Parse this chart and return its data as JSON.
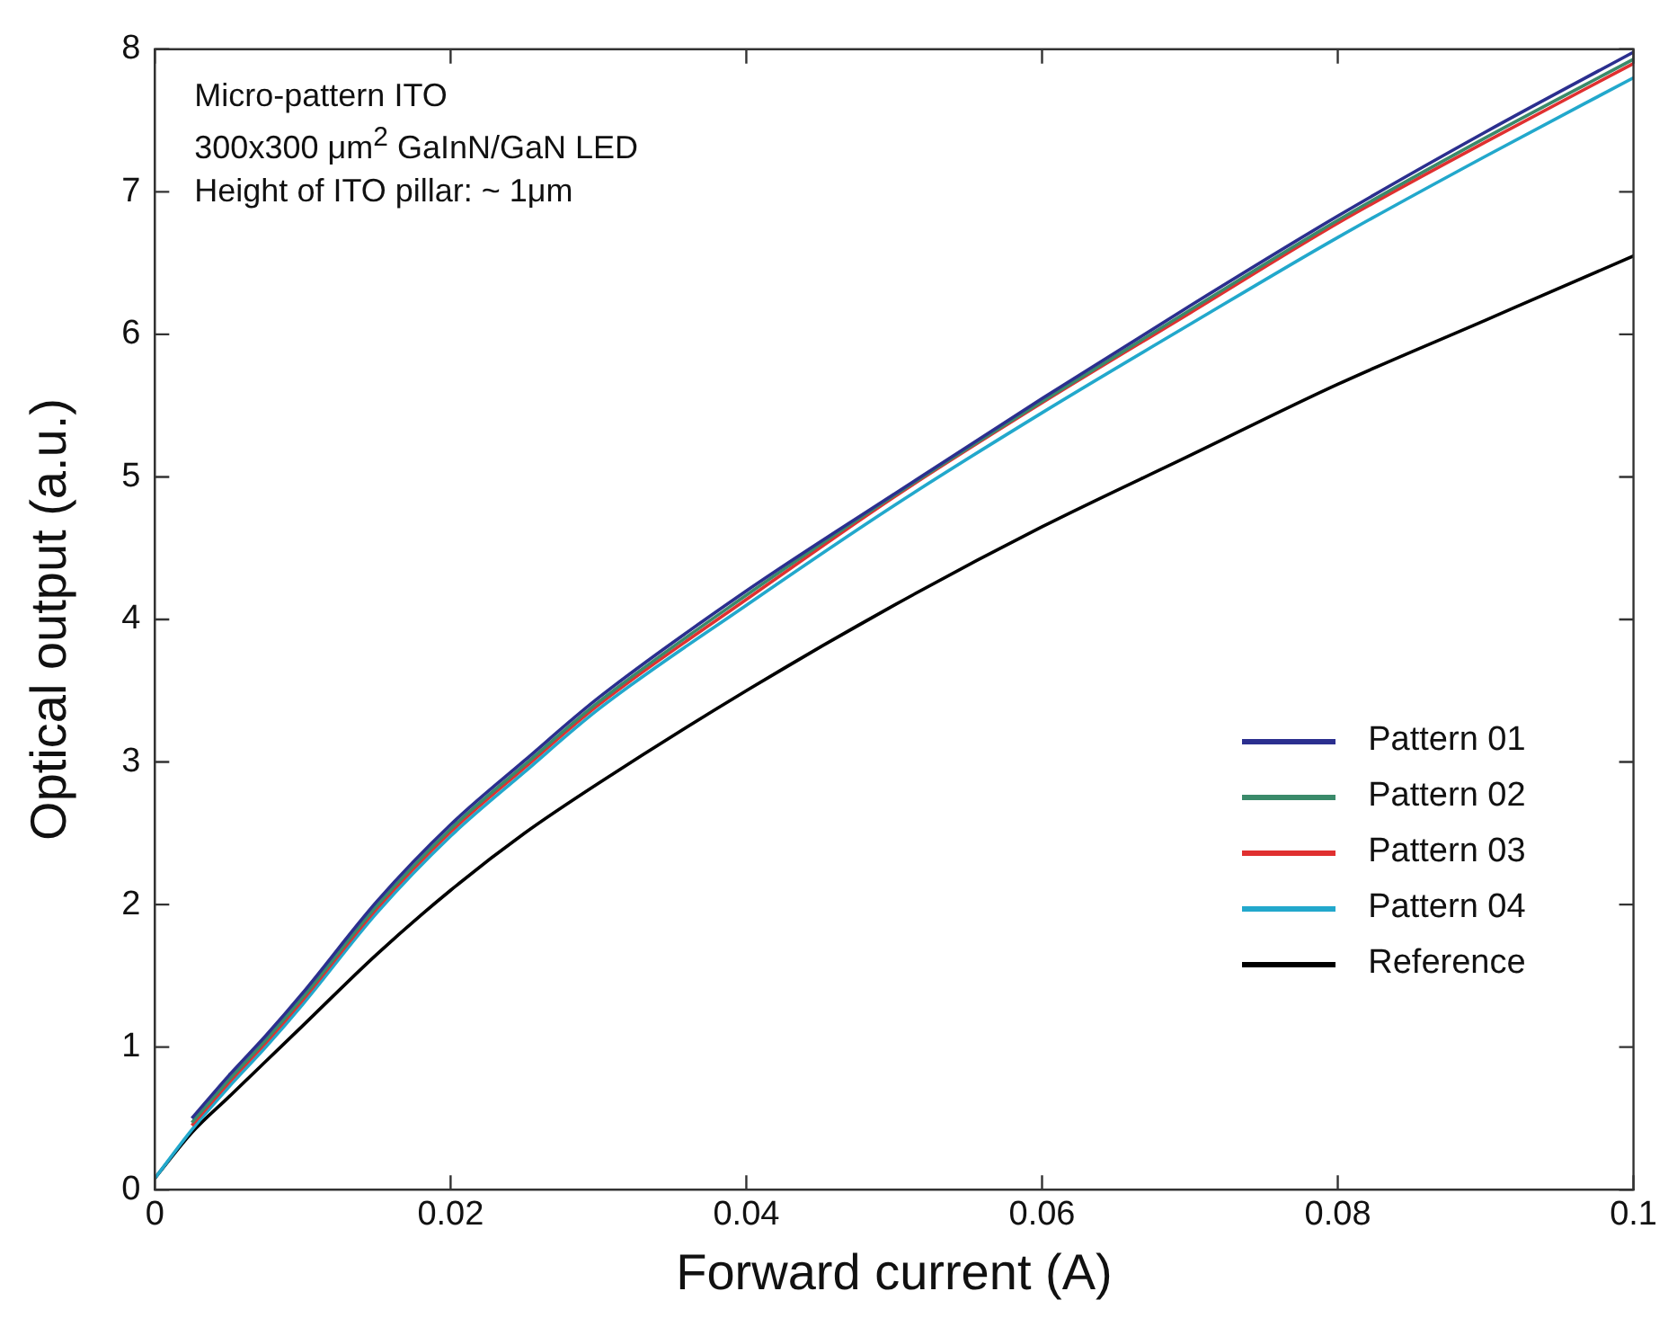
{
  "chart_data": {
    "type": "line",
    "xlabel": "Forward current (A)",
    "ylabel": "Optical output (a.u.)",
    "x": [
      0,
      0.0025,
      0.005,
      0.0075,
      0.01,
      0.015,
      0.02,
      0.025,
      0.03,
      0.04,
      0.05,
      0.06,
      0.07,
      0.08,
      0.09,
      0.1
    ],
    "series": [
      {
        "name": "Pattern 01",
        "color": "#2b2f8f",
        "values": [
          null,
          0.5,
          0.8,
          1.08,
          1.38,
          2.02,
          2.56,
          3.01,
          3.45,
          4.2,
          4.88,
          5.55,
          6.2,
          6.83,
          7.42,
          7.98
        ]
      },
      {
        "name": "Pattern 02",
        "color": "#3a8a6a",
        "values": [
          null,
          0.47,
          0.77,
          1.05,
          1.35,
          1.99,
          2.53,
          2.98,
          3.42,
          4.17,
          4.87,
          5.53,
          6.17,
          6.8,
          7.38,
          7.93
        ]
      },
      {
        "name": "Pattern 03",
        "color": "#e03030",
        "values": [
          null,
          0.45,
          0.75,
          1.03,
          1.33,
          1.97,
          2.51,
          2.96,
          3.4,
          4.14,
          4.86,
          5.52,
          6.15,
          6.78,
          7.35,
          7.9
        ]
      },
      {
        "name": "Pattern 04",
        "color": "#22a8cc",
        "values": [
          0.08,
          0.42,
          0.72,
          1.0,
          1.3,
          1.94,
          2.48,
          2.93,
          3.37,
          4.1,
          4.8,
          5.45,
          6.07,
          6.68,
          7.25,
          7.8
        ]
      },
      {
        "name": "Reference",
        "color": "#000000",
        "values": [
          0.08,
          0.4,
          0.65,
          0.9,
          1.15,
          1.65,
          2.1,
          2.5,
          2.85,
          3.5,
          4.1,
          4.65,
          5.15,
          5.65,
          6.1,
          6.55
        ]
      }
    ],
    "xlim": [
      0,
      0.1
    ],
    "xticks": [
      0,
      0.02,
      0.04,
      0.06,
      0.08,
      0.1
    ],
    "ylim": [
      0,
      8
    ],
    "yticks": [
      0,
      1,
      2,
      3,
      4,
      5,
      6,
      7,
      8
    ],
    "annotations": [
      "Micro-pattern ITO",
      "300x300 μm$^{2}$ GaInN/GaN LED",
      "Height of ITO pillar: ~ 1μm"
    ],
    "grid": false,
    "legend": "bottom right",
    "marker": "none",
    "line_style": "solid"
  }
}
